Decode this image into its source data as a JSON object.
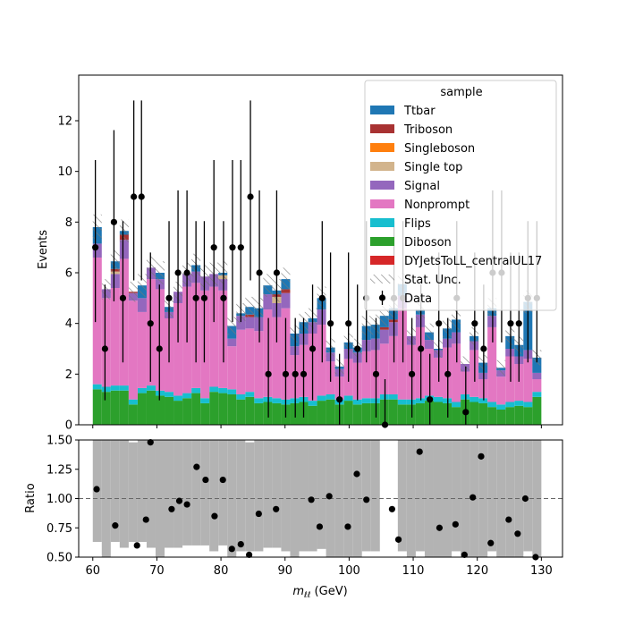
{
  "chart_data": [
    {
      "type": "bar",
      "subtype": "stacked-histogram",
      "ylabel": "Events",
      "ylim": [
        0,
        13.8
      ],
      "xlim": [
        57.8,
        133.3
      ],
      "yticks": [
        0,
        2,
        4,
        6,
        8,
        10,
        12
      ],
      "grid": false,
      "legend_title": "sample",
      "legend_position": "top-right",
      "bin_edges": [
        60,
        61.4,
        62.8,
        64.2,
        65.6,
        67,
        68.4,
        69.8,
        71.2,
        72.6,
        74,
        75.4,
        76.8,
        78.2,
        79.6,
        81,
        82.4,
        83.8,
        85.2,
        86.6,
        88,
        89.4,
        90.8,
        92.2,
        93.6,
        95,
        96.4,
        97.8,
        99.2,
        100.6,
        102,
        103.4,
        104.8,
        106.2,
        107.6,
        109,
        110.4,
        111.8,
        113.2,
        114.6,
        116,
        117.4,
        118.8,
        120.2,
        121.6,
        123,
        124.4,
        125.8,
        127.2,
        128.6,
        130
      ],
      "series": [
        {
          "name": "Diboson",
          "color": "#2ca02c",
          "values": [
            1.4,
            1.3,
            1.35,
            1.35,
            0.8,
            1.25,
            1.35,
            1.15,
            1.1,
            0.95,
            1.05,
            1.25,
            0.85,
            1.3,
            1.25,
            1.2,
            1.0,
            1.1,
            0.85,
            0.9,
            0.85,
            0.8,
            0.85,
            0.9,
            0.75,
            0.95,
            1.0,
            0.8,
            0.95,
            0.8,
            0.85,
            0.85,
            1.0,
            1.0,
            0.8,
            0.8,
            0.85,
            0.95,
            0.9,
            0.85,
            0.7,
            1.0,
            0.9,
            0.85,
            0.7,
            0.6,
            0.7,
            0.75,
            0.7,
            1.1
          ]
        },
        {
          "name": "Flips",
          "color": "#17becf",
          "values": [
            0.2,
            0.2,
            0.2,
            0.2,
            0.2,
            0.2,
            0.2,
            0.2,
            0.2,
            0.2,
            0.2,
            0.2,
            0.2,
            0.2,
            0.2,
            0.2,
            0.2,
            0.2,
            0.2,
            0.2,
            0.2,
            0.2,
            0.2,
            0.2,
            0.2,
            0.2,
            0.2,
            0.2,
            0.2,
            0.2,
            0.2,
            0.2,
            0.2,
            0.2,
            0.2,
            0.2,
            0.2,
            0.2,
            0.2,
            0.2,
            0.2,
            0.2,
            0.2,
            0.2,
            0.2,
            0.2,
            0.2,
            0.2,
            0.2,
            0.2
          ]
        },
        {
          "name": "Nonprompt",
          "color": "#e377c2",
          "values": [
            5.0,
            3.5,
            3.85,
            5.0,
            3.9,
            3.0,
            4.2,
            4.0,
            2.9,
            3.65,
            4.2,
            4.15,
            4.25,
            3.95,
            3.85,
            1.7,
            2.55,
            2.5,
            2.65,
            3.45,
            3.2,
            3.6,
            1.7,
            2.05,
            2.65,
            2.8,
            1.3,
            0.9,
            1.45,
            1.45,
            1.85,
            1.9,
            2.0,
            2.3,
            3.6,
            2.15,
            2.8,
            1.85,
            1.55,
            2.0,
            2.3,
            0.9,
            1.85,
            0.75,
            2.95,
            1.1,
            1.8,
            1.45,
            1.7,
            0.5
          ]
        },
        {
          "name": "Signal",
          "color": "#9467bd",
          "values": [
            0.55,
            0.35,
            0.55,
            0.75,
            0.3,
            0.55,
            0.45,
            0.4,
            0.25,
            0.45,
            0.5,
            0.45,
            0.55,
            0.5,
            0.45,
            0.3,
            0.55,
            0.45,
            0.55,
            0.6,
            0.55,
            0.6,
            0.35,
            0.45,
            0.45,
            0.6,
            0.35,
            0.3,
            0.4,
            0.4,
            0.45,
            0.45,
            0.55,
            0.55,
            0.5,
            0.35,
            0.5,
            0.35,
            0.3,
            0.35,
            0.45,
            0.3,
            0.35,
            0.25,
            0.45,
            0.25,
            0.3,
            0.3,
            0.35,
            0.25
          ]
        },
        {
          "name": "Single top",
          "color": "#d2b48c",
          "values": [
            0.0,
            0.0,
            0.1,
            0.0,
            0.0,
            0.0,
            0.0,
            0.0,
            0.0,
            0.0,
            0.0,
            0.0,
            0.0,
            0.0,
            0.15,
            0.0,
            0.0,
            0.0,
            0.0,
            0.0,
            0.25,
            0.0,
            0.0,
            0.0,
            0.0,
            0.0,
            0.0,
            0.0,
            0.0,
            0.0,
            0.0,
            0.0,
            0.0,
            0.0,
            0.0,
            0.0,
            0.0,
            0.0,
            0.0,
            0.0,
            0.0,
            0.0,
            0.0,
            0.0,
            0.0,
            0.0,
            0.0,
            0.0,
            0.0,
            0.0
          ]
        },
        {
          "name": "Singleboson",
          "color": "#ff7f0e",
          "values": [
            0.0,
            0.0,
            0.0,
            0.0,
            0.0,
            0.0,
            0.0,
            0.0,
            0.0,
            0.0,
            0.0,
            0.0,
            0.0,
            0.0,
            0.0,
            0.0,
            0.0,
            0.0,
            0.0,
            0.0,
            0.0,
            0.0,
            0.0,
            0.0,
            0.0,
            0.0,
            0.0,
            0.0,
            0.0,
            0.0,
            0.0,
            0.0,
            0.0,
            0.0,
            0.0,
            0.0,
            0.0,
            0.0,
            0.0,
            0.0,
            0.0,
            0.0,
            0.0,
            0.0,
            0.0,
            0.0,
            0.0,
            0.0,
            0.0,
            0.0
          ]
        },
        {
          "name": "Triboson",
          "color": "#a83232",
          "values": [
            0.0,
            0.0,
            0.1,
            0.2,
            0.05,
            0.0,
            0.0,
            0.0,
            0.0,
            0.0,
            0.0,
            0.0,
            0.0,
            0.0,
            0.0,
            0.0,
            0.0,
            0.1,
            0.0,
            0.0,
            0.1,
            0.15,
            0.0,
            0.0,
            0.0,
            0.0,
            0.0,
            0.0,
            0.0,
            0.0,
            0.0,
            0.0,
            0.1,
            0.1,
            0.0,
            0.0,
            0.0,
            0.0,
            0.0,
            0.0,
            0.0,
            0.0,
            0.0,
            0.0,
            0.0,
            0.0,
            0.0,
            0.0,
            0.0,
            0.0
          ]
        },
        {
          "name": "Ttbar",
          "color": "#1f77b4",
          "values": [
            0.65,
            0.0,
            0.3,
            0.15,
            0.0,
            0.5,
            0.0,
            0.25,
            0.2,
            0.0,
            0.0,
            0.25,
            0.0,
            0.0,
            0.1,
            0.5,
            0.1,
            0.3,
            0.35,
            0.35,
            0.15,
            0.4,
            0.5,
            0.45,
            0.15,
            0.45,
            0.2,
            0.1,
            0.25,
            0.2,
            0.55,
            0.55,
            0.45,
            0.45,
            0.45,
            0.0,
            0.2,
            0.3,
            0.05,
            0.4,
            0.5,
            0.0,
            0.2,
            0.4,
            0.3,
            0.1,
            0.5,
            0.45,
            1.9,
            0.6
          ]
        },
        {
          "name": "DYJetsToLL_centralUL17",
          "color": "#d62728",
          "values": [
            0.0,
            0.0,
            0.0,
            0.0,
            0.0,
            0.0,
            0.0,
            0.0,
            0.0,
            0.0,
            0.0,
            0.0,
            0.0,
            0.0,
            0.0,
            0.0,
            0.0,
            0.0,
            0.0,
            0.0,
            0.0,
            0.0,
            0.0,
            0.0,
            0.0,
            0.0,
            0.0,
            0.0,
            0.0,
            0.0,
            0.0,
            0.0,
            0.0,
            0.0,
            0.0,
            0.0,
            0.0,
            0.0,
            0.0,
            0.0,
            0.0,
            0.0,
            0.0,
            0.0,
            0.0,
            0.0,
            0.0,
            0.0,
            0.0,
            0.0
          ]
        }
      ],
      "stat_unc": {
        "name": "Stat. Unc.",
        "values": [
          0.5,
          0.4,
          0.45,
          0.45,
          0.4,
          0.45,
          0.45,
          0.45,
          0.4,
          0.4,
          0.45,
          0.45,
          0.45,
          0.45,
          0.45,
          0.35,
          0.4,
          0.4,
          0.4,
          0.45,
          0.45,
          0.45,
          0.35,
          0.4,
          0.4,
          0.45,
          0.35,
          0.3,
          0.35,
          0.35,
          0.4,
          0.4,
          0.4,
          0.4,
          0.45,
          0.35,
          0.4,
          0.35,
          0.35,
          0.35,
          0.4,
          0.3,
          0.35,
          0.3,
          0.4,
          0.3,
          0.35,
          0.35,
          0.45,
          0.3
        ]
      },
      "data": {
        "name": "Data",
        "x": [
          60.4,
          61.9,
          63.3,
          64.7,
          66.4,
          67.6,
          69.0,
          70.4,
          71.9,
          73.3,
          74.7,
          76.1,
          77.4,
          78.9,
          80.4,
          81.8,
          83.1,
          84.6,
          86.0,
          87.4,
          88.7,
          90.1,
          91.6,
          92.9,
          94.3,
          95.8,
          97.1,
          98.5,
          99.9,
          101.3,
          102.7,
          104.2,
          105.6,
          107.0,
          108.4,
          109.8,
          111.2,
          112.6,
          114.0,
          115.4,
          116.8,
          118.2,
          119.6,
          121.0,
          122.4,
          123.8,
          125.2,
          126.5,
          127.9,
          129.3
        ],
        "y": [
          7,
          3,
          8,
          5,
          9,
          9,
          4,
          3,
          5,
          6,
          6,
          5,
          5,
          7,
          5,
          7,
          7,
          9,
          6,
          2,
          6,
          2,
          2,
          2,
          3,
          5,
          4,
          1,
          4,
          3,
          5,
          2,
          0,
          5,
          5,
          2,
          3,
          1,
          4,
          2,
          5,
          0.5,
          4,
          3,
          6,
          6,
          4,
          4,
          5,
          5
        ],
        "color": "#000000"
      }
    },
    {
      "type": "scatter",
      "subtype": "ratio",
      "ylabel": "Ratio",
      "xlabel": "$m_{\\ell\\ell}$ (GeV)",
      "ylim": [
        0.5,
        1.5
      ],
      "xlim": [
        57.8,
        133.3
      ],
      "yticks": [
        0.5,
        0.75,
        1.0,
        1.25,
        1.5
      ],
      "xticks": [
        60,
        70,
        80,
        90,
        100,
        110,
        120,
        130
      ],
      "reference_line": 1.0,
      "band_color": "#b3b3b3",
      "band_lower": [
        0.63,
        0.5,
        0.63,
        0.58,
        0.63,
        0.63,
        0.58,
        0.5,
        0.58,
        0.58,
        0.6,
        0.6,
        0.6,
        0.55,
        0.6,
        0.5,
        0.55,
        0.55,
        0.55,
        0.58,
        0.58,
        0.55,
        0.5,
        0.55,
        0.55,
        0.57,
        0.5,
        0.5,
        0.5,
        0.5,
        0.55,
        0.55,
        null,
        null,
        0.55,
        0.5,
        0.55,
        0.5,
        0.5,
        0.5,
        0.55,
        0.5,
        0.5,
        0.5,
        0.55,
        0.5,
        0.5,
        0.5,
        0.55,
        0.5
      ],
      "band_upper": [
        1.5,
        1.5,
        1.5,
        1.5,
        1.48,
        1.5,
        1.5,
        1.5,
        1.5,
        1.5,
        1.5,
        1.5,
        1.5,
        1.5,
        1.5,
        1.5,
        1.5,
        1.48,
        1.5,
        1.5,
        1.5,
        1.5,
        1.5,
        1.5,
        1.5,
        1.5,
        1.5,
        1.5,
        1.5,
        1.5,
        1.5,
        1.5,
        null,
        null,
        1.5,
        1.5,
        1.5,
        1.5,
        1.5,
        1.5,
        1.5,
        1.5,
        1.5,
        1.5,
        1.5,
        1.5,
        1.5,
        1.5,
        1.5,
        1.5
      ],
      "points": {
        "x": [
          60.6,
          63.5,
          66.9,
          68.3,
          69.0,
          72.3,
          73.5,
          74.7,
          76.2,
          77.6,
          79.0,
          80.3,
          81.7,
          83.1,
          84.4,
          85.9,
          88.6,
          94.1,
          95.4,
          96.9,
          99.8,
          101.2,
          102.7,
          106.7,
          107.7,
          111.0,
          114.1,
          116.6,
          118.0,
          119.3,
          120.6,
          122.1,
          124.9,
          126.3,
          127.5,
          129.1
        ],
        "y": [
          1.08,
          0.77,
          0.6,
          0.82,
          1.48,
          0.91,
          0.98,
          0.95,
          1.27,
          1.16,
          0.85,
          1.16,
          0.57,
          0.61,
          0.52,
          0.87,
          0.91,
          0.99,
          0.76,
          1.02,
          0.76,
          1.21,
          0.99,
          0.91,
          0.65,
          1.4,
          0.75,
          0.78,
          0.52,
          1.01,
          1.36,
          0.62,
          0.82,
          0.7,
          1.0,
          0.5
        ]
      }
    }
  ]
}
